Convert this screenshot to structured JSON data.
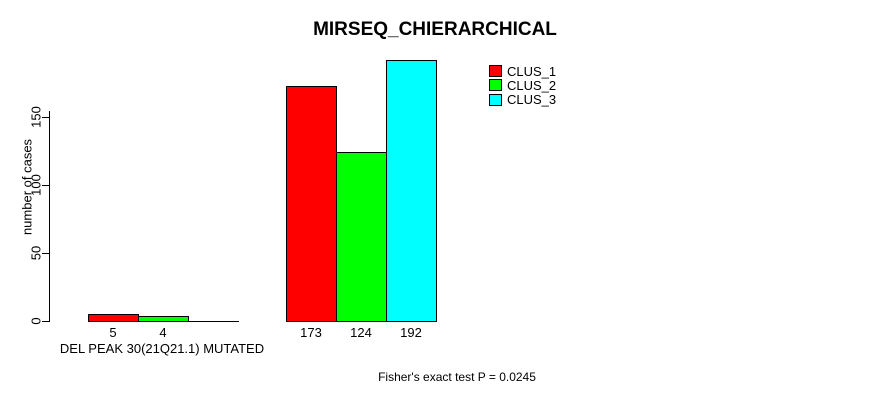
{
  "chart_data": {
    "type": "bar",
    "title": "MIRSEQ_CHIERARCHICAL",
    "ylabel": "number of cases",
    "xlabel": "DEL PEAK 30(21Q21.1) MUTATED",
    "annotation": "Fisher's exact test P = 0.0245",
    "yticks": [
      0,
      50,
      100,
      150
    ],
    "ylim": [
      0,
      150
    ],
    "grid": false,
    "legend_position": "top-right",
    "background": "#ffffff",
    "axis_color": "#000000",
    "series": [
      {
        "name": "CLUS_1",
        "color": "#ff0000"
      },
      {
        "name": "CLUS_2",
        "color": "#00ff00"
      },
      {
        "name": "CLUS_3",
        "color": "#00ffff"
      }
    ],
    "groups": [
      {
        "label": "DEL PEAK 30(21Q21.1) MUTATED",
        "values": [
          5,
          4,
          0
        ],
        "bar_labels": [
          "5",
          "4",
          ""
        ]
      },
      {
        "label": "",
        "values": [
          173,
          124,
          192
        ],
        "bar_labels": [
          "173",
          "124",
          "192"
        ]
      }
    ]
  }
}
